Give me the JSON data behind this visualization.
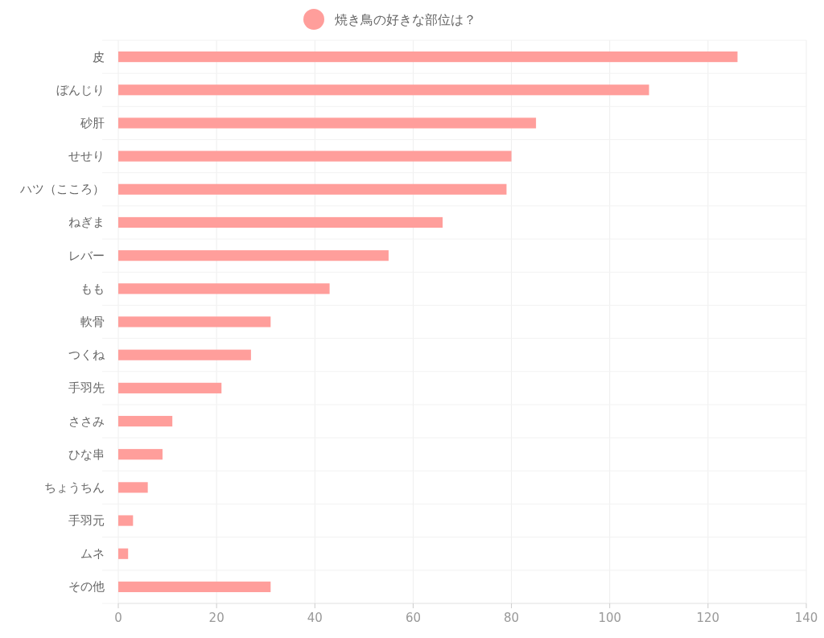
{
  "chart_data": {
    "type": "bar",
    "orientation": "horizontal",
    "categories": [
      "皮",
      "ぼんじり",
      "砂肝",
      "せせり",
      "ハツ（こころ）",
      "ねぎま",
      "レバー",
      "もも",
      "軟骨",
      "つくね",
      "手羽先",
      "ささみ",
      "ひな串",
      "ちょうちん",
      "手羽元",
      "ムネ",
      "その他"
    ],
    "series": [
      {
        "name": "焼き鳥の好きな部位は？",
        "color": "#ff9e9b",
        "values": [
          126,
          108,
          85,
          80,
          79,
          66,
          55,
          43,
          31,
          27,
          21,
          11,
          9,
          6,
          3,
          2,
          31
        ]
      }
    ],
    "xlim": [
      0,
      140
    ],
    "xticks": [
      0,
      20,
      40,
      60,
      80,
      100,
      120,
      140
    ],
    "grid": true,
    "legend": "top"
  }
}
